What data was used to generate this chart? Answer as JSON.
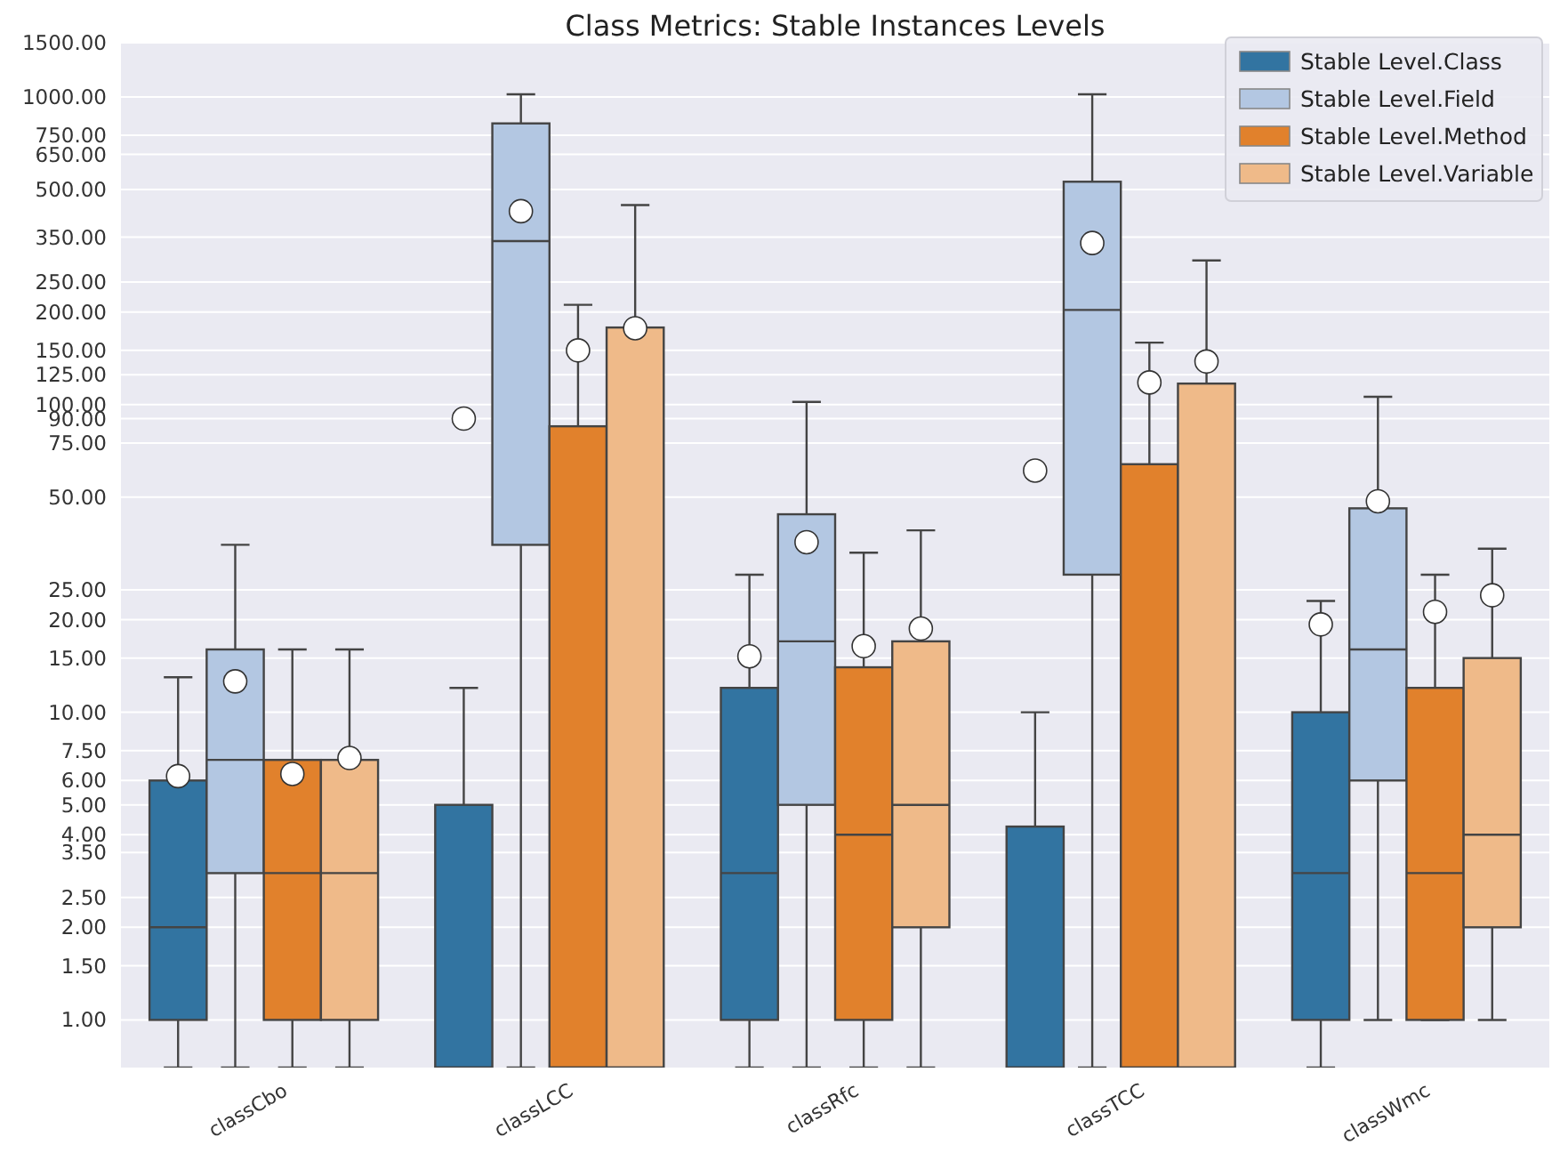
{
  "chart_data": {
    "type": "box",
    "title": "Class Metrics: Stable Instances Levels",
    "categories": [
      "classCbo",
      "classLCC",
      "classRfc",
      "classTCC",
      "classWmc"
    ],
    "log": true,
    "grid": "y",
    "legend": "top right",
    "ylim": [
      0.7,
      1500
    ],
    "yticks": [
      {
        "value": 1,
        "label": "1.00"
      },
      {
        "value": 1.5,
        "label": "1.50"
      },
      {
        "value": 2,
        "label": "2.00"
      },
      {
        "value": 2.5,
        "label": "2.50"
      },
      {
        "value": 3.5,
        "label": "3.50"
      },
      {
        "value": 4,
        "label": "4.00"
      },
      {
        "value": 5,
        "label": "5.00"
      },
      {
        "value": 6,
        "label": "6.00"
      },
      {
        "value": 7.5,
        "label": "7.50"
      },
      {
        "value": 10,
        "label": "10.00"
      },
      {
        "value": 15,
        "label": "15.00"
      },
      {
        "value": 20,
        "label": "20.00"
      },
      {
        "value": 25,
        "label": "25.00"
      },
      {
        "value": 50,
        "label": "50.00"
      },
      {
        "value": 75,
        "label": "75.00"
      },
      {
        "value": 90,
        "label": "90.00"
      },
      {
        "value": 100,
        "label": "100.00"
      },
      {
        "value": 125,
        "label": "125.00"
      },
      {
        "value": 150,
        "label": "150.00"
      },
      {
        "value": 200,
        "label": "200.00"
      },
      {
        "value": 250,
        "label": "250.00"
      },
      {
        "value": 350,
        "label": "350.00"
      },
      {
        "value": 500,
        "label": "500.00"
      },
      {
        "value": 650,
        "label": "650.00"
      },
      {
        "value": 750,
        "label": "750.00"
      },
      {
        "value": 1000,
        "label": "1000.00"
      },
      {
        "value": 1500,
        "label": "1500.00"
      }
    ],
    "series": [
      {
        "name": "Stable Level.Class",
        "color": "#3274a1",
        "boxes": [
          {
            "low": 0.7,
            "q1": 1,
            "median": 2,
            "q3": 6,
            "high": 13,
            "mean": 6.2
          },
          {
            "low": 0.7,
            "q1": 0.7,
            "median": 0.7,
            "q3": 5,
            "high": 12,
            "mean": 90
          },
          {
            "low": 0.7,
            "q1": 1,
            "median": 3,
            "q3": 12,
            "high": 28,
            "mean": 15.2
          },
          {
            "low": 0.7,
            "q1": 0.7,
            "median": 0.7,
            "q3": 4.25,
            "high": 10,
            "mean": 61
          },
          {
            "low": 0.7,
            "q1": 1,
            "median": 3,
            "q3": 10,
            "high": 23,
            "mean": 19.3
          }
        ]
      },
      {
        "name": "Stable Level.Field",
        "color": "#b3c7e2",
        "boxes": [
          {
            "low": 0.7,
            "q1": 3,
            "median": 7,
            "q3": 16,
            "high": 35,
            "mean": 12.6
          },
          {
            "low": 0.7,
            "q1": 35,
            "median": 340,
            "q3": 820,
            "high": 1020,
            "mean": 425
          },
          {
            "low": 0.7,
            "q1": 5,
            "median": 17,
            "q3": 44,
            "high": 102,
            "mean": 35.7
          },
          {
            "low": 0.7,
            "q1": 28,
            "median": 203,
            "q3": 530,
            "high": 1020,
            "mean": 335
          },
          {
            "low": 1,
            "q1": 6,
            "median": 16,
            "q3": 46,
            "high": 106,
            "mean": 48.5
          }
        ]
      },
      {
        "name": "Stable Level.Method",
        "color": "#e1812c",
        "boxes": [
          {
            "low": 0.7,
            "q1": 1,
            "median": 3,
            "q3": 7,
            "high": 16,
            "mean": 6.3
          },
          {
            "low": 0.7,
            "q1": 0.7,
            "median": 0.7,
            "q3": 85,
            "high": 211,
            "mean": 150
          },
          {
            "low": 0.7,
            "q1": 1,
            "median": 4,
            "q3": 14,
            "high": 33,
            "mean": 16.4
          },
          {
            "low": 0.7,
            "q1": 0.7,
            "median": 0.7,
            "q3": 64,
            "high": 159,
            "mean": 118
          },
          {
            "low": 1,
            "q1": 1,
            "median": 3,
            "q3": 12,
            "high": 28,
            "mean": 21.2
          }
        ]
      },
      {
        "name": "Stable Level.Variable",
        "color": "#efba89",
        "boxes": [
          {
            "low": 0.7,
            "q1": 1,
            "median": 3,
            "q3": 7,
            "high": 16,
            "mean": 7.1
          },
          {
            "low": 0.7,
            "q1": 0.7,
            "median": 0.7,
            "q3": 178,
            "high": 445,
            "mean": 177
          },
          {
            "low": 0.7,
            "q1": 2,
            "median": 5,
            "q3": 17,
            "high": 39,
            "mean": 18.7
          },
          {
            "low": 0.7,
            "q1": 0.7,
            "median": 0.7,
            "q3": 117,
            "high": 294,
            "mean": 138
          },
          {
            "low": 1,
            "q1": 2,
            "median": 4,
            "q3": 15,
            "high": 34,
            "mean": 24
          }
        ]
      }
    ]
  }
}
